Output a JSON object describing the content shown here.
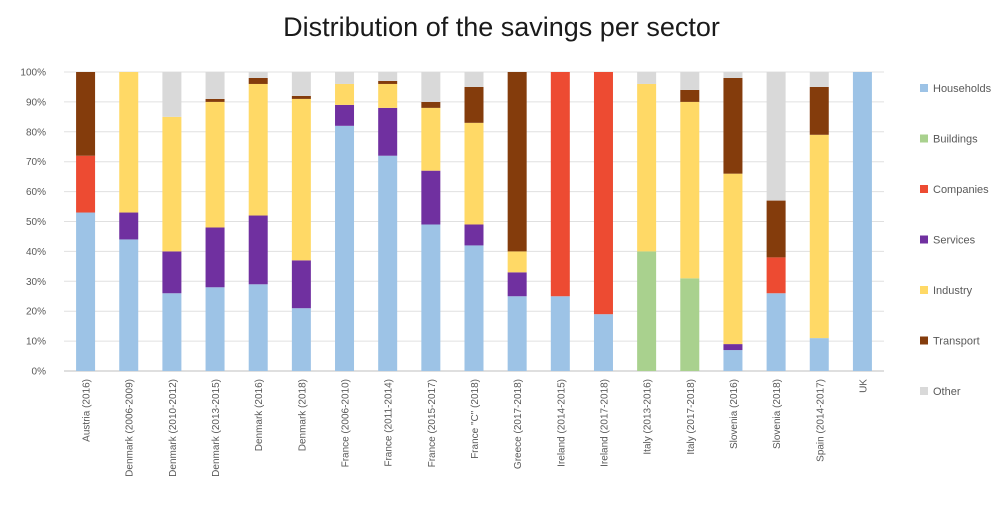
{
  "chart_data": {
    "type": "bar",
    "stacked": true,
    "title": "Distribution of the savings per sector",
    "xlabel": "",
    "ylabel": "",
    "ylim": [
      0,
      100
    ],
    "y_ticks": [
      "0%",
      "10%",
      "20%",
      "30%",
      "40%",
      "50%",
      "60%",
      "70%",
      "80%",
      "90%",
      "100%"
    ],
    "grid": true,
    "legend_position": "right",
    "categories": [
      "Austria (2016)",
      "Denmark (2006-2009)",
      "Denmark (2010-2012)",
      "Denmark (2013-2015)",
      "Denmark (2016)",
      "Denmark (2018)",
      "France (2006-2010)",
      "France (2011-2014)",
      "France (2015-2017)",
      "France \"C\" (2018)",
      "Greece (2017-2018)",
      "Ireland (2014-2015)",
      "Ireland (2017-2018)",
      "Italy (2013-2016)",
      "Italy (2017-2018)",
      "Slovenia (2016)",
      "Slovenia (2018)",
      "Spain (2014-2017)",
      "UK"
    ],
    "series": [
      {
        "name": "Households",
        "color": "#9dc3e6",
        "values": [
          53,
          44,
          26,
          28,
          29,
          21,
          82,
          72,
          49,
          42,
          25,
          25,
          19,
          0,
          0,
          7,
          26,
          11,
          100
        ]
      },
      {
        "name": "Buildings",
        "color": "#a9d18e",
        "values": [
          0,
          0,
          0,
          0,
          0,
          0,
          0,
          0,
          0,
          0,
          0,
          0,
          0,
          40,
          31,
          0,
          0,
          0,
          0
        ]
      },
      {
        "name": "Companies",
        "color": "#ed4b32",
        "values": [
          19,
          0,
          0,
          0,
          0,
          0,
          0,
          0,
          0,
          0,
          0,
          75,
          81,
          0,
          0,
          0,
          12,
          0,
          0
        ]
      },
      {
        "name": "Services",
        "color": "#7030a0",
        "values": [
          0,
          9,
          14,
          20,
          23,
          16,
          7,
          16,
          18,
          7,
          8,
          0,
          0,
          0,
          0,
          2,
          0,
          0,
          0
        ]
      },
      {
        "name": "Industry",
        "color": "#ffd966",
        "values": [
          0,
          47,
          45,
          42,
          44,
          54,
          7,
          8,
          21,
          34,
          7,
          0,
          0,
          56,
          59,
          57,
          0,
          68,
          0
        ]
      },
      {
        "name": "Transport",
        "color": "#843c0c",
        "values": [
          28,
          0,
          0,
          1,
          2,
          1,
          0,
          1,
          2,
          12,
          60,
          0,
          0,
          0,
          4,
          32,
          19,
          16,
          0
        ]
      },
      {
        "name": "Other",
        "color": "#d9d9d9",
        "values": [
          0,
          0,
          15,
          9,
          2,
          8,
          4,
          3,
          10,
          5,
          0,
          0,
          0,
          4,
          6,
          2,
          43,
          5,
          0
        ]
      }
    ]
  }
}
